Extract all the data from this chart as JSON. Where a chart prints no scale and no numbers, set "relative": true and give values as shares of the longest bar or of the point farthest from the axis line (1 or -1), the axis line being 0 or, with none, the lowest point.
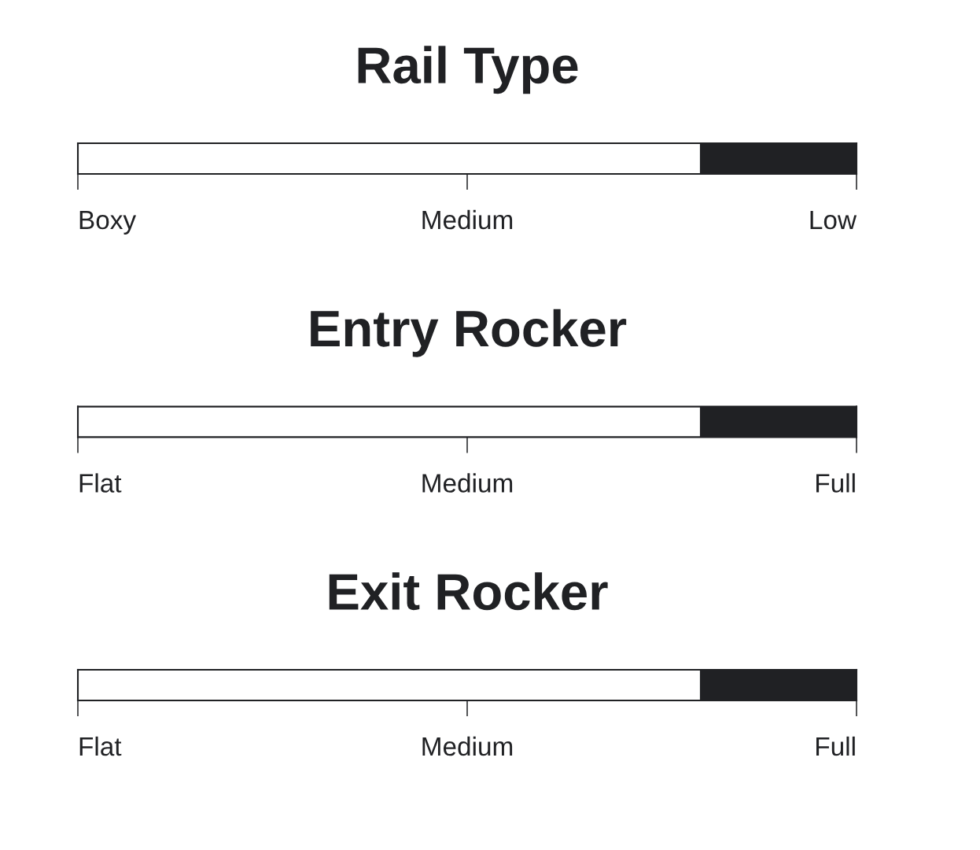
{
  "chart_data": [
    {
      "type": "bar",
      "orientation": "horizontal",
      "relative": true,
      "stacked": true,
      "title": "Rail Type",
      "categories": [
        null
      ],
      "series": [
        {
          "color": "#ffffff",
          "values": [
            0.8
          ]
        },
        {
          "color": "#202124",
          "values": [
            0.2
          ]
        }
      ],
      "annotations": [
        "Boxy",
        "Medium",
        "Low"
      ]
    },
    {
      "type": "bar",
      "orientation": "horizontal",
      "relative": true,
      "stacked": true,
      "title": "Entry Rocker",
      "categories": [
        null
      ],
      "series": [
        {
          "color": "#ffffff",
          "values": [
            0.8
          ]
        },
        {
          "color": "#202124",
          "values": [
            0.2
          ]
        }
      ],
      "annotations": [
        "Flat",
        "Medium",
        "Full"
      ]
    },
    {
      "type": "bar",
      "orientation": "horizontal",
      "relative": true,
      "stacked": true,
      "title": "Exit Rocker",
      "categories": [
        null
      ],
      "series": [
        {
          "color": "#ffffff",
          "values": [
            0.8
          ]
        },
        {
          "color": "#202124",
          "values": [
            0.2
          ]
        }
      ],
      "annotations": [
        "Flat",
        "Medium",
        "Full"
      ]
    }
  ]
}
